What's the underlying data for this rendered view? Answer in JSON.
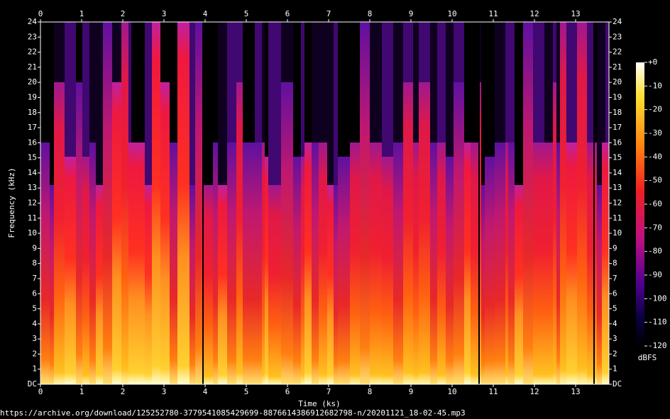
{
  "chart_data": {
    "type": "spectrogram",
    "xlabel": "Time (ks)",
    "ylabel": "Frequency (kHz)",
    "xlim": [
      0,
      13.81
    ],
    "xticks": [
      0,
      1,
      2,
      3,
      4,
      5,
      6,
      7,
      8,
      9,
      10,
      11,
      12,
      13
    ],
    "ylim": [
      0,
      24
    ],
    "yticks": [
      {
        "value": 0,
        "label": "DC"
      },
      1,
      2,
      3,
      4,
      5,
      6,
      7,
      8,
      9,
      10,
      11,
      12,
      13,
      14,
      15,
      16,
      17,
      18,
      19,
      20,
      21,
      22,
      23,
      24
    ],
    "colorbar_label": "dBFS",
    "colorbar_lim": [
      -120,
      0
    ],
    "colorbar_ticks": [
      {
        "value": 0,
        "label": "+0"
      },
      -10,
      -20,
      -30,
      -40,
      -50,
      -60,
      -70,
      -80,
      -90,
      -100,
      -110,
      -120
    ],
    "source": "https://archive.org/download/125252780-3779541085429699-8876614386912682798-n/20201121_18-02-45.mp3"
  }
}
